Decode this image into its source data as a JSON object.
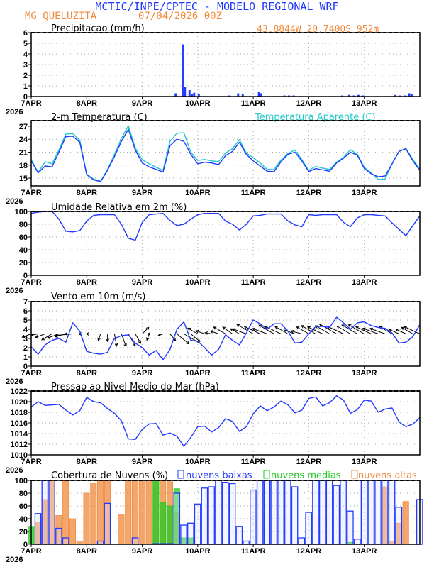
{
  "header": {
    "title": "MCTIC/INPE/CPTEC - MODELO REGIONAL WRF",
    "station": "MG QUELUZITA",
    "run": "07/04/2026 00Z",
    "location": "43.8844W 20.7400S 952m",
    "colors": {
      "title": "#2038ff",
      "info": "#f08a3c"
    }
  },
  "chart_data": [
    {
      "id": "precip",
      "type": "bar",
      "title": "Precipitacao (mm/h)",
      "ylim": [
        0,
        6
      ],
      "yticks": [
        0,
        1,
        2,
        3,
        4,
        5,
        6
      ],
      "xticks": [
        "7APR",
        "8APR",
        "9APR",
        "10APR",
        "11APR",
        "12APR",
        "13APR"
      ],
      "xyear": "2026",
      "grid": true,
      "color": "#2038ff",
      "values": [
        [
          "9APR 14Z",
          0.3
        ],
        [
          "9APR 17Z",
          4.9
        ],
        [
          "9APR 18Z",
          0.9
        ],
        [
          "9APR 20Z",
          0.6
        ],
        [
          "9APR 21Z",
          0.2
        ],
        [
          "9APR 22Z",
          0.35
        ],
        [
          "10APR 00Z",
          0.25
        ],
        [
          "10APR 13Z",
          0.1
        ],
        [
          "10APR 17Z",
          0.3
        ],
        [
          "10APR 19Z",
          0.25
        ],
        [
          "11APR 02Z",
          0.45
        ],
        [
          "11APR 03Z",
          0.3
        ],
        [
          "11APR 13Z",
          0.1
        ],
        [
          "11APR 15Z",
          0.1
        ],
        [
          "11APR 17Z",
          0.1
        ],
        [
          "12APR 14Z",
          0.1
        ],
        [
          "12APR 17Z",
          0.15
        ],
        [
          "12APR 19Z",
          0.1
        ],
        [
          "12APR 21Z",
          0.15
        ],
        [
          "12APR 23Z",
          0.1
        ],
        [
          "13APR 13Z",
          0.15
        ],
        [
          "13APR 15Z",
          0.1
        ],
        [
          "13APR 17Z",
          0.1
        ],
        [
          "13APR 19Z",
          0.3
        ],
        [
          "13APR 20Z",
          0.2
        ]
      ]
    },
    {
      "id": "temp",
      "type": "line",
      "title": "2-m Temperatura (C)",
      "ylim": [
        13.2,
        28.3
      ],
      "yticks": [
        15,
        18,
        21,
        24,
        27
      ],
      "xticks": [
        "7APR",
        "8APR",
        "9APR",
        "10APR",
        "11APR",
        "12APR",
        "13APR"
      ],
      "xyear": "2026",
      "grid": true,
      "time_start": "07/04/2026 00Z",
      "time_step_h": 3,
      "series": [
        {
          "name": "2-m Temperatura (C)",
          "color": "#2038ff",
          "values": [
            19.0,
            16.2,
            17.8,
            17.6,
            21.0,
            24.6,
            24.7,
            23.3,
            15.8,
            14.6,
            14.2,
            16.8,
            20.0,
            23.5,
            26.3,
            21.5,
            18.5,
            17.6,
            17.0,
            16.4,
            22.5,
            24.0,
            23.5,
            20.5,
            18.3,
            18.7,
            18.5,
            18.1,
            20.2,
            21.2,
            23.3,
            20.5,
            19.0,
            17.8,
            16.6,
            16.5,
            18.8,
            20.5,
            21.0,
            19.0,
            16.5,
            17.2,
            16.9,
            16.6,
            18.5,
            19.6,
            21.0,
            20.3,
            17.2,
            16.0,
            15.3,
            15.5,
            18.3,
            21.2,
            21.8,
            19.0,
            16.8
          ]
        },
        {
          "name": "Temperatura Aparente (C)",
          "color": "#20c8c8",
          "values": [
            19.3,
            16.3,
            18.8,
            18.3,
            21.5,
            25.2,
            25.3,
            23.8,
            15.9,
            14.8,
            14.3,
            17.0,
            20.5,
            24.2,
            27.1,
            22.0,
            19.2,
            18.3,
            17.5,
            16.8,
            23.5,
            25.4,
            25.5,
            21.0,
            19.1,
            19.3,
            19.0,
            18.8,
            20.8,
            21.8,
            23.9,
            20.8,
            19.7,
            18.5,
            17.0,
            17.0,
            19.2,
            20.7,
            21.5,
            19.3,
            16.8,
            17.7,
            17.3,
            17.0,
            18.7,
            19.8,
            21.6,
            20.5,
            17.5,
            16.2,
            14.7,
            14.8,
            18.3,
            21.2,
            21.9,
            19.3,
            17.1
          ]
        }
      ]
    },
    {
      "id": "rh",
      "type": "line",
      "title": "Umidade Relativa em 2m (%)",
      "ylim": [
        0,
        100
      ],
      "yticks": [
        0,
        20,
        40,
        60,
        80,
        100
      ],
      "xticks": [
        "7APR",
        "8APR",
        "9APR",
        "10APR",
        "11APR",
        "12APR",
        "13APR"
      ],
      "xyear": "2026",
      "grid": true,
      "time_start": "07/04/2026 00Z",
      "time_step_h": 3,
      "series": [
        {
          "color": "#2038ff",
          "values": [
            97,
            99,
            100,
            100,
            88,
            69,
            68,
            70,
            85,
            94,
            95,
            95,
            95,
            80,
            58,
            55,
            83,
            95,
            96,
            97,
            86,
            78,
            80,
            88,
            95,
            97,
            97,
            97,
            85,
            80,
            71,
            80,
            93,
            94,
            96,
            96,
            96,
            85,
            79,
            76,
            95,
            94,
            95,
            95,
            95,
            83,
            76,
            90,
            95,
            95,
            94,
            93,
            82,
            72,
            62,
            78,
            93
          ]
        }
      ]
    },
    {
      "id": "wind",
      "type": "line",
      "title": "Vento em 10m (m/s)",
      "ylim": [
        0,
        7
      ],
      "yticks": [
        0,
        1,
        2,
        3,
        4,
        5,
        6,
        7
      ],
      "xticks": [
        "7APR",
        "8APR",
        "9APR",
        "10APR",
        "11APR",
        "12APR",
        "13APR"
      ],
      "xyear": "2026",
      "grid": true,
      "time_start": "07/04/2026 00Z",
      "time_step_h": 3,
      "series": [
        {
          "color": "#2038ff",
          "values": [
            2.1,
            1.3,
            2.3,
            2.8,
            3.0,
            2.6,
            4.7,
            3.8,
            1.6,
            1.4,
            1.3,
            1.5,
            3.0,
            3.3,
            3.4,
            2.5,
            2.0,
            1.2,
            1.7,
            0.7,
            1.8,
            4.0,
            4.8,
            2.8,
            2.7,
            2.0,
            1.2,
            1.8,
            3.4,
            2.8,
            2.3,
            3.6,
            5.0,
            4.6,
            4.0,
            4.6,
            4.6,
            3.8,
            2.5,
            2.6,
            3.5,
            4.3,
            4.3,
            4.2,
            5.3,
            4.7,
            4.0,
            4.7,
            4.8,
            4.4,
            4.2,
            4.1,
            3.6,
            2.5,
            2.6,
            3.2,
            4.5
          ]
        }
      ],
      "arrows": {
        "color": "#000000",
        "baseline": 3.5,
        "direction_toward_deg": [
          250,
          260,
          250,
          240,
          250,
          255,
          265,
          270,
          270,
          270,
          200,
          180,
          170,
          160,
          150,
          150,
          45,
          200,
          270,
          250,
          140,
          130,
          120,
          130,
          300,
          290,
          280,
          290,
          300,
          305,
          300,
          290,
          300,
          295,
          290,
          300,
          295,
          300,
          290,
          285,
          300,
          300,
          295,
          300,
          300,
          295,
          300,
          300,
          300,
          295,
          290,
          290,
          300,
          295,
          295,
          300,
          295
        ]
      }
    },
    {
      "id": "pressure",
      "type": "line",
      "title": "Pressao ao Nivel Medio do Mar (hPa)",
      "ylim": [
        1010,
        1022
      ],
      "yticks": [
        1010,
        1012,
        1014,
        1016,
        1018,
        1020,
        1022
      ],
      "xticks": [
        "7APR",
        "8APR",
        "9APR",
        "10APR",
        "11APR",
        "12APR",
        "13APR"
      ],
      "xyear": "2026",
      "grid": true,
      "time_start": "07/04/2026 00Z",
      "time_step_h": 3,
      "series": [
        {
          "color": "#2038ff",
          "values": [
            1019.0,
            1020.0,
            1019.3,
            1019.4,
            1019.5,
            1018.4,
            1017.5,
            1018.3,
            1020.8,
            1020.0,
            1019.8,
            1018.7,
            1017.8,
            1016.4,
            1013.0,
            1012.9,
            1014.8,
            1015.8,
            1015.9,
            1013.7,
            1014.1,
            1013.5,
            1011.6,
            1013.3,
            1015.3,
            1015.4,
            1014.3,
            1015.1,
            1016.8,
            1016.3,
            1014.4,
            1015.3,
            1017.7,
            1019.2,
            1018.3,
            1019.0,
            1020.1,
            1019.4,
            1017.9,
            1018.4,
            1020.6,
            1020.9,
            1019.2,
            1019.8,
            1021.1,
            1020.3,
            1017.8,
            1018.5,
            1020.3,
            1020.1,
            1018.0,
            1018.6,
            1018.8,
            1016.2,
            1015.3,
            1015.8,
            1017.0
          ]
        }
      ]
    },
    {
      "id": "clouds",
      "type": "bar",
      "title": "Cobertura de Nuvens (%)",
      "ylim": [
        0,
        100
      ],
      "yticks": [
        0,
        20,
        40,
        60,
        80,
        100
      ],
      "xticks": [
        "7APR",
        "8APR",
        "9APR",
        "10APR",
        "11APR",
        "12APR",
        "13APR"
      ],
      "xyear": "2026",
      "grid": true,
      "legend": "top",
      "time_start": "07/04/2026 00Z",
      "time_step_h": 3,
      "series": [
        {
          "name": "nuvens altas",
          "color": "#f08a3c",
          "values": [
            0,
            35,
            70,
            100,
            45,
            100,
            40,
            5,
            80,
            95,
            100,
            100,
            0,
            47,
            100,
            100,
            100,
            100,
            100,
            100,
            98,
            50,
            0,
            0,
            0,
            0,
            0,
            0,
            0,
            0,
            0,
            0,
            0,
            0,
            0,
            0,
            0,
            0,
            0,
            0,
            0,
            0,
            0,
            0,
            0,
            0,
            0,
            0,
            0,
            0,
            0,
            90,
            5,
            33,
            67,
            0,
            0
          ]
        },
        {
          "name": "nuvens medias",
          "color": "#20c820",
          "values": [
            28,
            0,
            0,
            0,
            0,
            0,
            0,
            0,
            0,
            0,
            0,
            0,
            0,
            0,
            0,
            0,
            0,
            0,
            100,
            65,
            60,
            87,
            10,
            10,
            0,
            0,
            0,
            0,
            0,
            0,
            0,
            0,
            0,
            0,
            0,
            0,
            0,
            0,
            0,
            0,
            0,
            0,
            0,
            0,
            0,
            0,
            3,
            0,
            0,
            0,
            0,
            0,
            0,
            0,
            0,
            0,
            0
          ]
        },
        {
          "name": "nuvens baixas",
          "color": "#2038ff",
          "values": [
            0,
            48,
            100,
            100,
            25,
            10,
            0,
            0,
            0,
            0,
            5,
            64,
            0,
            0,
            0,
            10,
            0,
            0,
            1,
            1,
            1,
            80,
            30,
            33,
            63,
            88,
            90,
            100,
            97,
            95,
            28,
            5,
            85,
            100,
            100,
            100,
            100,
            100,
            90,
            10,
            50,
            100,
            100,
            100,
            92,
            100,
            52,
            8,
            100,
            100,
            100,
            100,
            100,
            58,
            0,
            0,
            70
          ]
        }
      ]
    }
  ]
}
